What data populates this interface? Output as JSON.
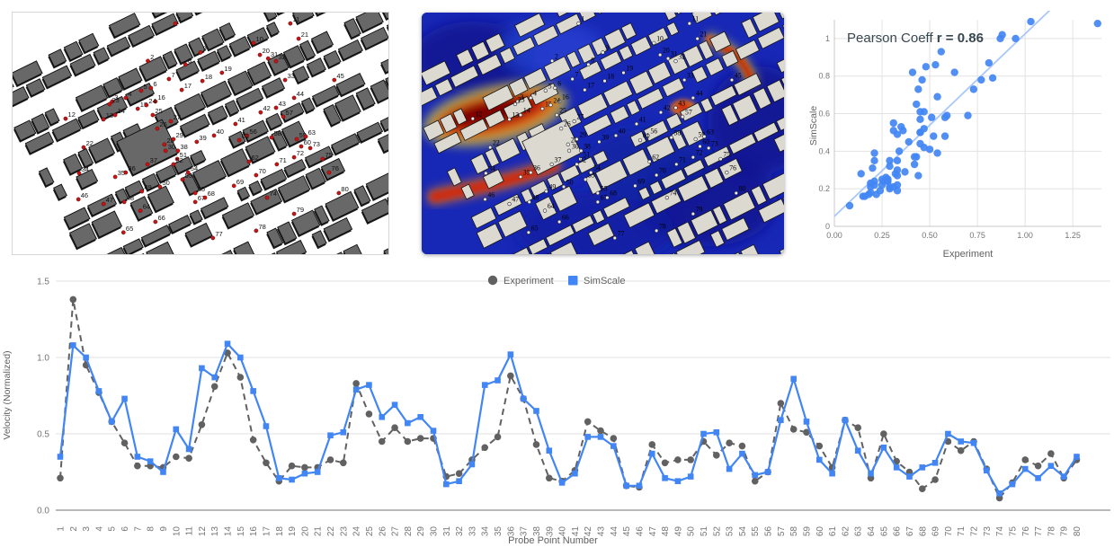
{
  "maps": {
    "left": {
      "marker_color": "#c81414",
      "building_color": "#686868",
      "background": "#ffffff"
    },
    "middle": {
      "building_color": "#dcd9d1",
      "background_low_velocity": "#1828b6",
      "contour_colors": [
        "#0c1488",
        "#1828b6",
        "#1fb9de",
        "#44d148",
        "#e8e030",
        "#ee7d18",
        "#cc2a0c",
        "#7a0403"
      ],
      "marker_color": "#ececec"
    }
  },
  "probe_points": [
    {
      "n": "1",
      "x": 43.3,
      "y": 4.5
    },
    {
      "n": "2",
      "x": 36.0,
      "y": 20.0
    },
    {
      "n": "3",
      "x": 26.5,
      "y": 36.8
    },
    {
      "n": "4",
      "x": 30.1,
      "y": 35.3
    },
    {
      "n": "5",
      "x": 34.2,
      "y": 32.3
    },
    {
      "n": "6",
      "x": 36.8,
      "y": 31.2
    },
    {
      "n": "7",
      "x": 41.6,
      "y": 27.5
    },
    {
      "n": "8",
      "x": 46.0,
      "y": 21.5
    },
    {
      "n": "9",
      "x": 50.0,
      "y": 16.5
    },
    {
      "n": "10",
      "x": 64.1,
      "y": 12.6
    },
    {
      "n": "11",
      "x": 73.9,
      "y": 4.5
    },
    {
      "n": "12",
      "x": 14.1,
      "y": 43.9
    },
    {
      "n": "13",
      "x": 24.2,
      "y": 44.2
    },
    {
      "n": "14",
      "x": 27.3,
      "y": 42.4
    },
    {
      "n": "15",
      "x": 33.3,
      "y": 39.8
    },
    {
      "n": "16",
      "x": 38.0,
      "y": 36.8
    },
    {
      "n": "17",
      "x": 45.0,
      "y": 32.0
    },
    {
      "n": "18",
      "x": 50.5,
      "y": 28.3
    },
    {
      "n": "19",
      "x": 55.7,
      "y": 24.9
    },
    {
      "n": "20",
      "x": 65.8,
      "y": 17.5
    },
    {
      "n": "21",
      "x": 76.1,
      "y": 10.8
    },
    {
      "n": "22",
      "x": 18.9,
      "y": 55.8
    },
    {
      "n": "23",
      "x": 25.8,
      "y": 37.9
    },
    {
      "n": "24",
      "x": 35.6,
      "y": 38.3
    },
    {
      "n": "25",
      "x": 37.3,
      "y": 42.4
    },
    {
      "n": "26",
      "x": 38.5,
      "y": 48.0
    },
    {
      "n": "27",
      "x": 42.1,
      "y": 45.0
    },
    {
      "n": "28",
      "x": 40.4,
      "y": 54.6
    },
    {
      "n": "29",
      "x": 42.8,
      "y": 52.4
    },
    {
      "n": "30",
      "x": 40.7,
      "y": 57.2
    },
    {
      "n": "31",
      "x": 68.0,
      "y": 19.0
    },
    {
      "n": "32",
      "x": 70.1,
      "y": 20.1
    },
    {
      "n": "33",
      "x": 72.5,
      "y": 27.9
    },
    {
      "n": "34",
      "x": 17.7,
      "y": 66.5
    },
    {
      "n": "35",
      "x": 27.3,
      "y": 68.0
    },
    {
      "n": "36",
      "x": 30.1,
      "y": 66.2
    },
    {
      "n": "37",
      "x": 35.9,
      "y": 62.8
    },
    {
      "n": "38",
      "x": 44.0,
      "y": 57.2
    },
    {
      "n": "39",
      "x": 49.0,
      "y": 53.5
    },
    {
      "n": "40",
      "x": 53.6,
      "y": 50.9
    },
    {
      "n": "41",
      "x": 59.3,
      "y": 46.1
    },
    {
      "n": "42",
      "x": 66.0,
      "y": 41.3
    },
    {
      "n": "43",
      "x": 70.1,
      "y": 39.4
    },
    {
      "n": "44",
      "x": 74.9,
      "y": 35.3
    },
    {
      "n": "45",
      "x": 85.6,
      "y": 27.9
    },
    {
      "n": "46",
      "x": 17.5,
      "y": 77.3
    },
    {
      "n": "47",
      "x": 24.2,
      "y": 79.2
    },
    {
      "n": "48",
      "x": 29.7,
      "y": 78.4
    },
    {
      "n": "49",
      "x": 34.4,
      "y": 74.0
    },
    {
      "n": "50",
      "x": 39.2,
      "y": 72.1
    },
    {
      "n": "51",
      "x": 43.8,
      "y": 60.6
    },
    {
      "n": "52",
      "x": 42.8,
      "y": 62.8
    },
    {
      "n": "53",
      "x": 45.2,
      "y": 69.1
    },
    {
      "n": "54",
      "x": 46.7,
      "y": 66.2
    },
    {
      "n": "55",
      "x": 48.6,
      "y": 74.7
    },
    {
      "n": "56",
      "x": 62.4,
      "y": 50.9
    },
    {
      "n": "57",
      "x": 72.0,
      "y": 43.1
    },
    {
      "n": "58",
      "x": 68.9,
      "y": 51.7
    },
    {
      "n": "59",
      "x": 75.6,
      "y": 52.4
    },
    {
      "n": "60",
      "x": 76.8,
      "y": 55.4
    },
    {
      "n": "61",
      "x": 60.3,
      "y": 52.8
    },
    {
      "n": "62",
      "x": 62.9,
      "y": 61.7
    },
    {
      "n": "63",
      "x": 78.0,
      "y": 51.3
    },
    {
      "n": "64",
      "x": 34.0,
      "y": 82.0
    },
    {
      "n": "65",
      "x": 29.5,
      "y": 91.0
    },
    {
      "n": "66",
      "x": 38.0,
      "y": 86.6
    },
    {
      "n": "67",
      "x": 48.6,
      "y": 78.4
    },
    {
      "n": "68",
      "x": 51.2,
      "y": 76.6
    },
    {
      "n": "69",
      "x": 58.9,
      "y": 71.7
    },
    {
      "n": "70",
      "x": 64.8,
      "y": 67.3
    },
    {
      "n": "71",
      "x": 70.3,
      "y": 62.8
    },
    {
      "n": "72",
      "x": 74.9,
      "y": 59.9
    },
    {
      "n": "73",
      "x": 79.2,
      "y": 56.1
    },
    {
      "n": "74",
      "x": 67.7,
      "y": 76.6
    },
    {
      "n": "75",
      "x": 82.5,
      "y": 60.6
    },
    {
      "n": "76",
      "x": 84.2,
      "y": 66.2
    },
    {
      "n": "77",
      "x": 53.3,
      "y": 93.3
    },
    {
      "n": "78",
      "x": 64.8,
      "y": 90.3
    },
    {
      "n": "79",
      "x": 74.9,
      "y": 83.3
    },
    {
      "n": "80",
      "x": 86.8,
      "y": 74.7
    }
  ],
  "scatter": {
    "title_prefix": "Pearson Coeff ",
    "title_bold": "r = 0.86",
    "xlabel": "Experiment",
    "ylabel": "SimScale",
    "x_ticks": [
      "0.00",
      "0.25",
      "0.50",
      "0.75",
      "1.00",
      "1.25"
    ],
    "x_tick_values": [
      0,
      0.25,
      0.5,
      0.75,
      1.0,
      1.25
    ],
    "y_ticks": [
      "0",
      "0.2",
      "0.4",
      "0.6",
      "0.8",
      "1"
    ],
    "y_tick_values": [
      0,
      0.2,
      0.4,
      0.6,
      0.8,
      1.0
    ],
    "dot_color": "#4285f4",
    "trend_color": "#a8c7fa",
    "title_color": "#37474f"
  },
  "line_chart": {
    "ylabel": "Velocity (Normalized)",
    "xlabel": "Probe Point Number",
    "y_ticks": [
      "0.0",
      "0.5",
      "1.0",
      "1.5"
    ],
    "y_tick_values": [
      0,
      0.5,
      1.0,
      1.5
    ],
    "legend": [
      {
        "label": "Experiment",
        "color": "#616161",
        "marker": "circle"
      },
      {
        "label": "SimScale",
        "color": "#4285f4",
        "marker": "square"
      }
    ]
  },
  "chart_data": [
    {
      "type": "scatter",
      "title": "Pearson Coeff r = 0.86",
      "xlabel": "Experiment",
      "ylabel": "SimScale",
      "xlim": [
        0,
        1.4
      ],
      "ylim": [
        0,
        1.1
      ],
      "grid": true,
      "trendline": true,
      "x": [
        0.21,
        1.38,
        0.95,
        0.77,
        0.58,
        0.44,
        0.29,
        0.29,
        0.28,
        0.35,
        0.34,
        0.56,
        0.81,
        1.03,
        0.87,
        0.46,
        0.31,
        0.19,
        0.29,
        0.28,
        0.28,
        0.33,
        0.31,
        0.83,
        0.63,
        0.45,
        0.54,
        0.45,
        0.47,
        0.47,
        0.22,
        0.24,
        0.33,
        0.41,
        0.48,
        0.88,
        0.73,
        0.43,
        0.21,
        0.19,
        0.26,
        0.58,
        0.52,
        0.47,
        0.16,
        0.15,
        0.43,
        0.31,
        0.33,
        0.33,
        0.45,
        0.36,
        0.44,
        0.42,
        0.19,
        0.25,
        0.7,
        0.53,
        0.51,
        0.42,
        0.28,
        0.59,
        0.54,
        0.21,
        0.5,
        0.32,
        0.25,
        0.14,
        0.2,
        0.45,
        0.39,
        0.45,
        0.27,
        0.08,
        0.18,
        0.33,
        0.29,
        0.37,
        0.21,
        0.33
      ],
      "y": [
        0.35,
        1.08,
        1.0,
        0.78,
        0.58,
        0.73,
        0.35,
        0.32,
        0.25,
        0.53,
        0.4,
        0.93,
        0.87,
        1.09,
        1.0,
        0.78,
        0.55,
        0.21,
        0.2,
        0.24,
        0.25,
        0.49,
        0.51,
        0.79,
        0.82,
        0.61,
        0.69,
        0.57,
        0.61,
        0.52,
        0.17,
        0.19,
        0.3,
        0.82,
        0.85,
        1.02,
        0.73,
        0.65,
        0.39,
        0.18,
        0.24,
        0.48,
        0.48,
        0.42,
        0.16,
        0.16,
        0.37,
        0.21,
        0.19,
        0.22,
        0.5,
        0.51,
        0.27,
        0.37,
        0.23,
        0.25,
        0.59,
        0.86,
        0.58,
        0.33,
        0.24,
        0.59,
        0.39,
        0.24,
        0.41,
        0.28,
        0.22,
        0.28,
        0.31,
        0.5,
        0.45,
        0.44,
        0.26,
        0.11,
        0.17,
        0.27,
        0.21,
        0.29,
        0.22,
        0.35
      ]
    },
    {
      "type": "line",
      "xlabel": "Probe Point Number",
      "ylabel": "Velocity (Normalized)",
      "ylim": [
        0,
        1.5
      ],
      "grid": true,
      "legend_position": "top-center",
      "categories": [
        1,
        2,
        3,
        4,
        5,
        6,
        7,
        8,
        9,
        10,
        11,
        12,
        13,
        14,
        15,
        16,
        17,
        18,
        19,
        20,
        21,
        22,
        23,
        24,
        25,
        26,
        27,
        28,
        29,
        30,
        31,
        32,
        33,
        34,
        35,
        36,
        37,
        38,
        39,
        40,
        41,
        42,
        43,
        44,
        45,
        46,
        47,
        48,
        49,
        50,
        51,
        52,
        53,
        54,
        55,
        56,
        57,
        58,
        59,
        60,
        61,
        62,
        63,
        64,
        65,
        66,
        67,
        68,
        69,
        70,
        71,
        72,
        73,
        74,
        75,
        76,
        77,
        78,
        79,
        80
      ],
      "series": [
        {
          "name": "Experiment",
          "style": "dashed",
          "marker": "circle",
          "color": "#616161",
          "values": [
            0.21,
            1.38,
            0.95,
            0.77,
            0.58,
            0.44,
            0.29,
            0.29,
            0.28,
            0.35,
            0.34,
            0.56,
            0.81,
            1.03,
            0.87,
            0.46,
            0.31,
            0.19,
            0.29,
            0.28,
            0.28,
            0.33,
            0.31,
            0.83,
            0.63,
            0.45,
            0.54,
            0.45,
            0.47,
            0.47,
            0.22,
            0.24,
            0.33,
            0.41,
            0.48,
            0.88,
            0.73,
            0.43,
            0.21,
            0.19,
            0.26,
            0.58,
            0.52,
            0.47,
            0.16,
            0.15,
            0.43,
            0.31,
            0.33,
            0.33,
            0.45,
            0.36,
            0.44,
            0.42,
            0.19,
            0.25,
            0.7,
            0.53,
            0.51,
            0.42,
            0.28,
            0.59,
            0.54,
            0.21,
            0.5,
            0.32,
            0.25,
            0.14,
            0.2,
            0.45,
            0.39,
            0.45,
            0.27,
            0.08,
            0.18,
            0.33,
            0.29,
            0.37,
            0.21,
            0.33
          ]
        },
        {
          "name": "SimScale",
          "style": "solid",
          "marker": "square",
          "color": "#4285f4",
          "values": [
            0.35,
            1.08,
            1.0,
            0.78,
            0.58,
            0.73,
            0.35,
            0.32,
            0.25,
            0.53,
            0.4,
            0.93,
            0.87,
            1.09,
            1.0,
            0.78,
            0.55,
            0.21,
            0.2,
            0.24,
            0.25,
            0.49,
            0.51,
            0.79,
            0.82,
            0.61,
            0.69,
            0.57,
            0.61,
            0.52,
            0.17,
            0.19,
            0.3,
            0.82,
            0.85,
            1.02,
            0.73,
            0.65,
            0.39,
            0.18,
            0.24,
            0.48,
            0.48,
            0.42,
            0.16,
            0.16,
            0.37,
            0.21,
            0.19,
            0.22,
            0.5,
            0.51,
            0.27,
            0.37,
            0.23,
            0.25,
            0.59,
            0.86,
            0.58,
            0.33,
            0.24,
            0.59,
            0.39,
            0.24,
            0.41,
            0.28,
            0.22,
            0.28,
            0.31,
            0.5,
            0.45,
            0.44,
            0.26,
            0.11,
            0.17,
            0.27,
            0.21,
            0.29,
            0.22,
            0.35
          ]
        }
      ]
    }
  ]
}
